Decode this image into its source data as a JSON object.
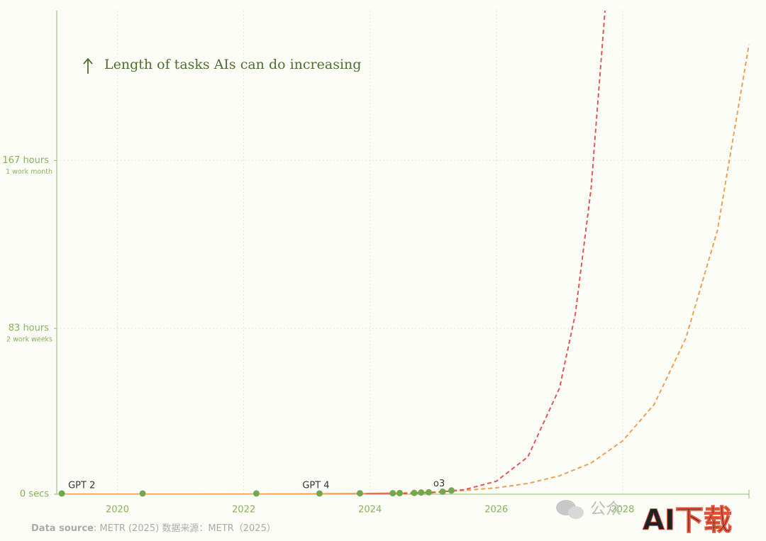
{
  "chart_data": {
    "type": "line",
    "annotation": "Length of tasks AIs can do increasing",
    "xlim": [
      2019.04,
      2030.0
    ],
    "xticks": [
      2020,
      2022,
      2024,
      2026,
      2028
    ],
    "ylim": [
      0,
      242
    ],
    "yticks": [
      {
        "value": 0,
        "label": "0 secs"
      },
      {
        "value": 83,
        "label": "83 hours"
      },
      {
        "value": 167,
        "label": "167 hours"
      }
    ],
    "ytick_sublabels": [
      null,
      "2 work weeks",
      "1 work month"
    ],
    "grid": true,
    "axis_color": "#8cbb68",
    "series": [
      {
        "color": "#f0a050",
        "style": "solid",
        "x": [
          2019.1,
          2020,
          2021,
          2022,
          2023,
          2024,
          2024.3
        ],
        "values": [
          0.002,
          0.005,
          0.015,
          0.044,
          0.13,
          0.4,
          0.55
        ]
      },
      {
        "color": "#f0a050",
        "style": "dashed",
        "x": [
          2024.3,
          2024.5,
          2025,
          2025.5,
          2026,
          2026.5,
          2027,
          2027.5,
          2028,
          2028.5,
          2029,
          2029.5,
          2030
        ],
        "values": [
          0.55,
          0.64,
          1.1,
          1.9,
          3.2,
          5.4,
          9.2,
          15.6,
          26.7,
          45,
          78,
          132,
          225
        ]
      },
      {
        "color": "#e05a55",
        "style": "solid",
        "x": [
          2023.93,
          2024.3
        ],
        "values": [
          0.08,
          0.17
        ]
      },
      {
        "color": "#e05a55",
        "style": "dashed",
        "x": [
          2024.3,
          2024.5,
          2025,
          2025.5,
          2026,
          2026.5,
          2027,
          2027.25,
          2027.5,
          2027.72
        ],
        "values": [
          0.17,
          0.28,
          0.8,
          2.3,
          6.5,
          18.7,
          53,
          90,
          153,
          242
        ]
      }
    ],
    "points": {
      "color": "#72a84c",
      "x": [
        2019.12,
        2020.4,
        2022.2,
        2023.2,
        2023.84,
        2024.36,
        2024.47,
        2024.7,
        2024.81,
        2024.93,
        2025.15,
        2025.29
      ],
      "values": [
        0,
        0,
        0,
        0.01,
        0.1,
        0.15,
        0.2,
        0.3,
        0.5,
        0.6,
        0.9,
        1.5
      ],
      "labels": [
        "GPT 2",
        null,
        null,
        "GPT 4",
        null,
        null,
        null,
        null,
        null,
        null,
        "o3",
        null
      ]
    },
    "source_label": "Data source",
    "source": ": METR (2025)  数据来源：METR（2025）",
    "watermark": "公众",
    "logo": "AI下载"
  }
}
